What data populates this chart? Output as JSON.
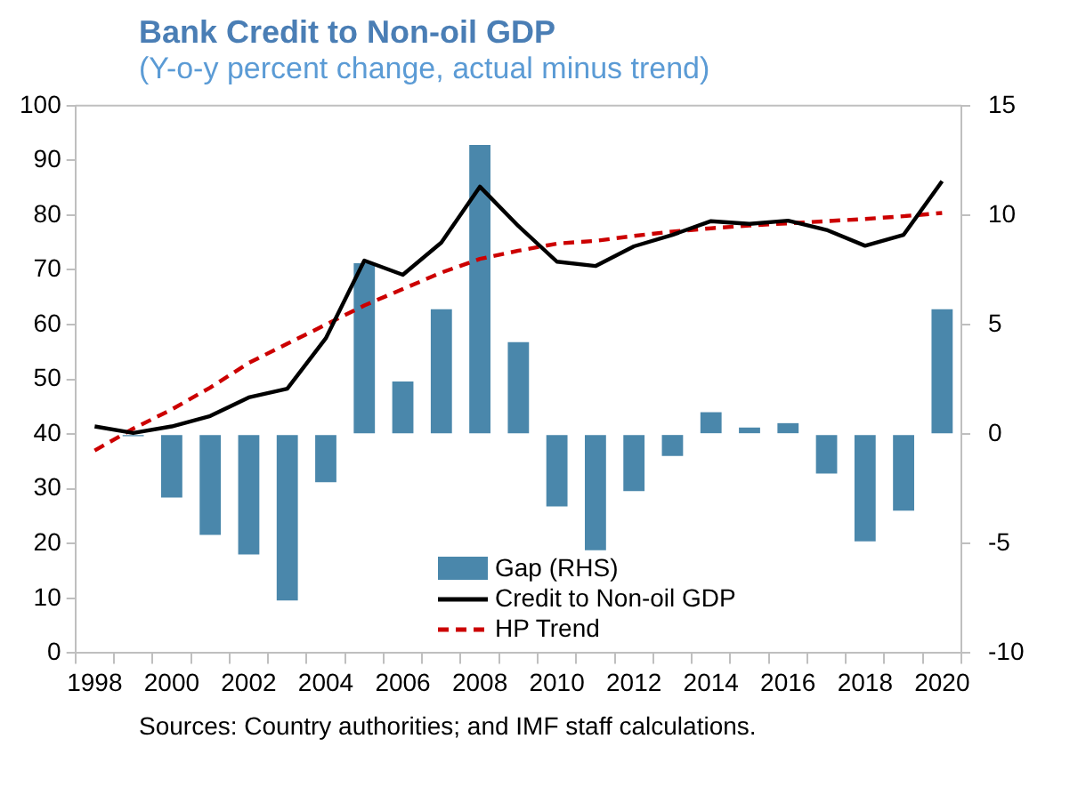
{
  "chart_data": {
    "type": "line",
    "title": "Bank Credit to Non-oil GDP",
    "subtitle": "(Y-o-y percent change, actual minus trend)",
    "categories": [
      "1998",
      null,
      "2000",
      null,
      "2002",
      null,
      "2004",
      null,
      "2006",
      null,
      "2008",
      null,
      "2010",
      null,
      "2012",
      null,
      "2014",
      null,
      "2016",
      null,
      "2018",
      null,
      "2020"
    ],
    "series": [
      {
        "name": "Gap (RHS)",
        "type": "bar",
        "axis": "y2",
        "color": "#4a87ab",
        "values": [
          null,
          -0.1,
          -2.9,
          -4.6,
          -5.5,
          -7.6,
          -2.2,
          7.8,
          2.4,
          5.7,
          13.2,
          4.2,
          -3.3,
          -5.3,
          -2.6,
          -1.0,
          1.0,
          0.3,
          0.5,
          -1.8,
          -4.9,
          -3.5,
          5.7
        ]
      },
      {
        "name": "Credit to Non-oil GDP",
        "color": "#000000",
        "line_style": "solid",
        "values": [
          41.4,
          40.2,
          41.4,
          43.3,
          46.7,
          48.3,
          57.5,
          71.7,
          69.1,
          75.0,
          85.2,
          78.0,
          71.5,
          70.7,
          74.3,
          76.4,
          78.9,
          78.4,
          79.0,
          77.3,
          74.4,
          76.4,
          86.2
        ]
      },
      {
        "name": "HP Trend",
        "color": "#cc0000",
        "line_style": "dashed",
        "values": [
          37.0,
          41.0,
          44.5,
          48.5,
          53.0,
          56.5,
          60.0,
          63.5,
          66.5,
          69.5,
          72.0,
          73.5,
          74.8,
          75.3,
          76.2,
          77.0,
          77.6,
          78.1,
          78.5,
          78.9,
          79.3,
          79.8,
          80.4
        ]
      }
    ],
    "ylim": [
      0,
      100
    ],
    "yticks": [
      0,
      10,
      20,
      30,
      40,
      50,
      60,
      70,
      80,
      90,
      100
    ],
    "y2lim": [
      -10,
      15
    ],
    "y2ticks": [
      -10,
      -5,
      0,
      5,
      10,
      15
    ],
    "grid": false,
    "legend": "bottom",
    "marker": "none",
    "annotations": [
      "Sources: Country authorities; and IMF staff calculations."
    ]
  }
}
